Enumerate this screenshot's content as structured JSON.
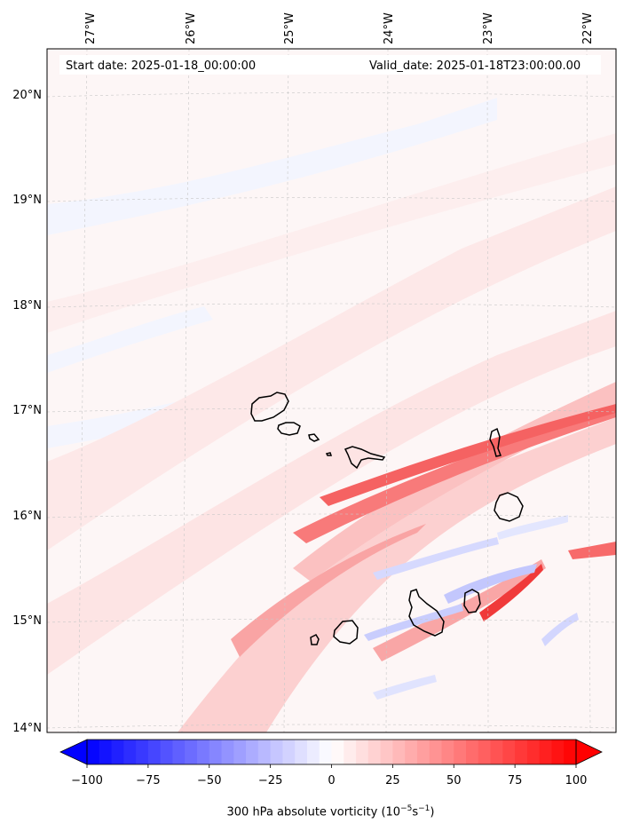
{
  "header": {
    "start_date": "Start date: 2025-01-18_00:00:00",
    "valid_date": "Valid_date: 2025-01-18T23:00:00.00"
  },
  "longitude_labels": [
    "27°W",
    "26°W",
    "25°W",
    "24°W",
    "23°W",
    "22°W"
  ],
  "latitude_labels": [
    "20°N",
    "19°N",
    "18°N",
    "17°N",
    "16°N",
    "15°N",
    "14°N"
  ],
  "colorbar": {
    "title_main": "300 hPa absolute vorticity (10",
    "title_exp1": "−5",
    "title_mid": "s",
    "title_exp2": "−1",
    "title_end": ")",
    "ticks": [
      "−100",
      "−75",
      "−50",
      "−25",
      "0",
      "25",
      "50",
      "75",
      "100"
    ],
    "min": -100,
    "max": 100,
    "step": 5,
    "neg_color": "#0000ff",
    "zero_color": "#ffffff",
    "pos_color": "#ff0000"
  },
  "features": [
    {
      "name": "island-santo-antao"
    },
    {
      "name": "island-sao-vicente"
    },
    {
      "name": "island-santa-luzia"
    },
    {
      "name": "island-raso"
    },
    {
      "name": "island-sao-nicolau"
    },
    {
      "name": "island-sal"
    },
    {
      "name": "island-boa-vista"
    },
    {
      "name": "island-maio"
    },
    {
      "name": "island-santiago"
    },
    {
      "name": "island-fogo"
    },
    {
      "name": "island-brava"
    }
  ]
}
